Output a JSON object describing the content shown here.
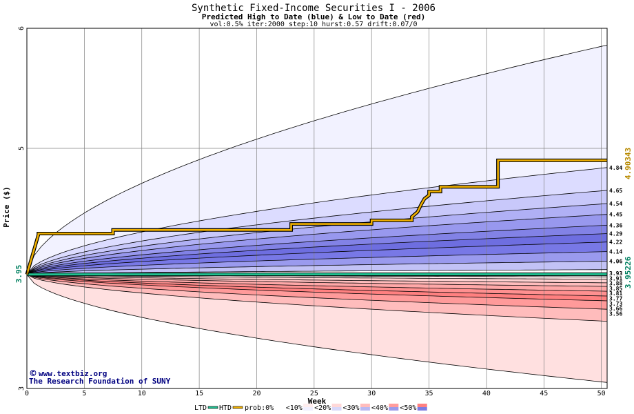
{
  "chart_data": {
    "type": "area",
    "title": "Synthetic Fixed-Income Securities I - 2006",
    "subtitle": "Predicted High to Date (blue) &  Low to Date (red)",
    "params": "vol:0.5% iter:2000 step:10 hurst:0.57 drift:0.07/0",
    "xlabel": "Week",
    "ylabel": "Price ($)",
    "xlim": [
      0,
      50.5
    ],
    "ylim": [
      3,
      6
    ],
    "x_ticks": [
      0,
      5,
      10,
      15,
      20,
      25,
      30,
      35,
      40,
      45,
      50
    ],
    "y_ticks": [
      3,
      5,
      6
    ],
    "grid": true,
    "start_price": 3.95,
    "start_label": "3.95",
    "right_top_label": "4.90343",
    "right_bottom_label": "3.95226",
    "upper_band_levels": [
      5.86,
      4.84,
      4.65,
      4.54,
      4.45,
      4.36,
      4.29,
      4.22,
      4.14,
      4.06,
      3.99
    ],
    "upper_band_labels": [
      "4.84",
      "4.65",
      "4.54",
      "4.45",
      "4.36",
      "4.29",
      "4.22",
      "4.14",
      "4.06"
    ],
    "lower_band_levels": [
      3.93,
      3.91,
      3.88,
      3.85,
      3.81,
      3.77,
      3.73,
      3.66,
      3.56,
      3.05
    ],
    "lower_band_labels": [
      "3.93",
      "3.91",
      "3.88",
      "3.85",
      "3.81",
      "3.77",
      "3.73",
      "3.66",
      "3.56"
    ],
    "htd_series": {
      "name": "HTD",
      "x": [
        0,
        1,
        1,
        7.5,
        7.5,
        23,
        23,
        30,
        30,
        33.5,
        33.5,
        34,
        34.3,
        34.6,
        35,
        35,
        36,
        36,
        41,
        41,
        50.5
      ],
      "y": [
        3.95,
        4.28,
        4.29,
        4.29,
        4.32,
        4.32,
        4.37,
        4.37,
        4.4,
        4.4,
        4.43,
        4.47,
        4.53,
        4.58,
        4.61,
        4.64,
        4.64,
        4.68,
        4.68,
        4.9,
        4.9
      ]
    },
    "ltd_series": {
      "name": "LTD",
      "x": [
        0,
        50.5
      ],
      "y": [
        3.95,
        3.952
      ]
    },
    "legend": {
      "placement": "bottom",
      "items": [
        "LTD",
        "HTD",
        "prob:0%",
        "<10%",
        "<20%",
        "<30%",
        "<40%",
        "<50%"
      ]
    },
    "colors": {
      "htd": "#f0b000",
      "ltd": "#20c090",
      "right_top_label": "#b88a00",
      "right_bottom_label": "#008060",
      "upper_bands": [
        "#f2f2ff",
        "#dcdcff",
        "#c8c8fa",
        "#b0b0f5",
        "#9898ee",
        "#8282e6",
        "#6e6ee0",
        "#7878e6",
        "#9a9aee",
        "#c2c2f6"
      ],
      "lower_bands": [
        "#ffe8e8",
        "#ffd0d0",
        "#ffbcbc",
        "#ffa8a8",
        "#ff9090",
        "#ff8080",
        "#ff9a9a",
        "#ffbcbc",
        "#ffe0e0"
      ]
    }
  },
  "credits": {
    "line1": "www.textbiz.org",
    "line2": "The Research Foundation of SUNY"
  }
}
